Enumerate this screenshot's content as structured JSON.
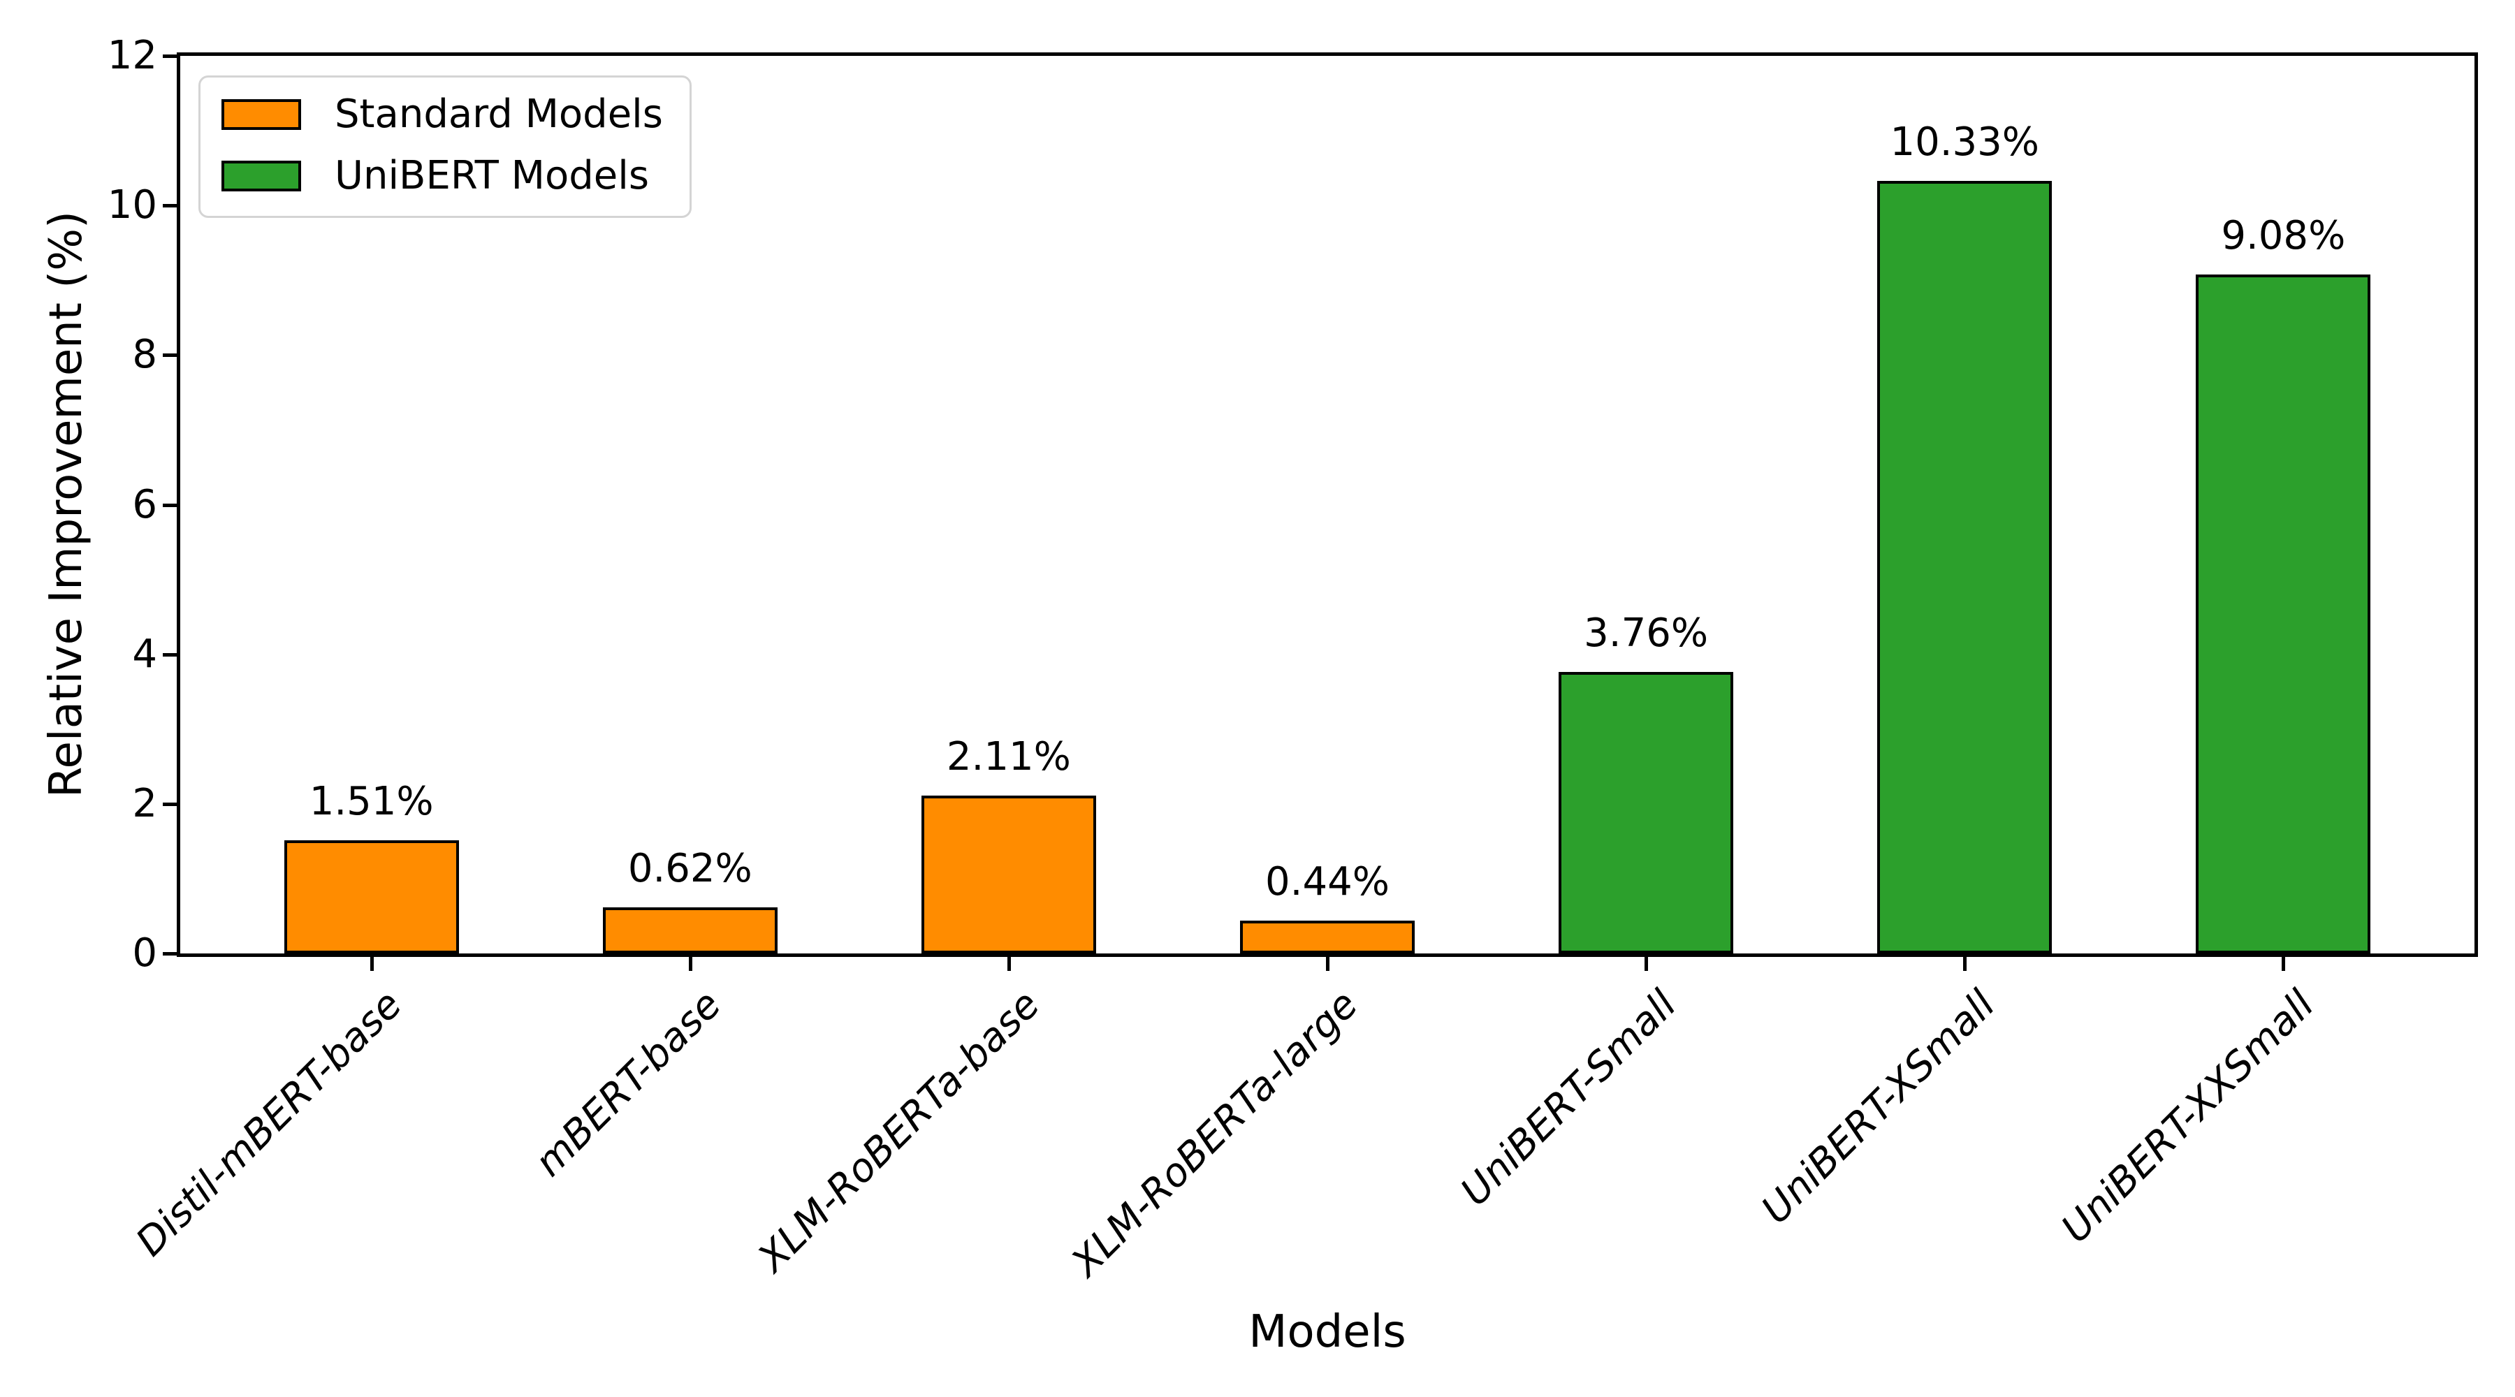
{
  "figure": {
    "background": "#ffffff"
  },
  "chart_data": {
    "type": "bar",
    "title": "",
    "xlabel": "Models",
    "ylabel": "Relative Improvement (%)",
    "categories": [
      "Distil-mBERT-base",
      "mBERT-base",
      "XLM-RoBERTa-base",
      "XLM-RoBERTa-large",
      "UniBERT-Small",
      "UniBERT-XSmall",
      "UniBERT-XXSmall"
    ],
    "values": [
      1.51,
      0.62,
      2.11,
      0.44,
      3.76,
      10.33,
      9.08
    ],
    "value_labels": [
      "1.51%",
      "0.62%",
      "2.11%",
      "0.44%",
      "3.76%",
      "10.33%",
      "9.08%"
    ],
    "series_of_bar": [
      "standard",
      "standard",
      "standard",
      "standard",
      "unibert",
      "unibert",
      "unibert"
    ],
    "bar_colors": [
      "#ff8c00",
      "#ff8c00",
      "#ff8c00",
      "#ff8c00",
      "#2ca02c",
      "#2ca02c",
      "#2ca02c"
    ],
    "bar_edge_color": "#000000",
    "ylim": [
      0,
      12
    ],
    "yticks": [
      0,
      2,
      4,
      6,
      8,
      10,
      12
    ],
    "grid": false,
    "legend": {
      "position": "upper-left",
      "entries": [
        {
          "label": "Standard Models",
          "color": "#ff8c00"
        },
        {
          "label": "UniBERT Models",
          "color": "#2ca02c"
        }
      ]
    }
  }
}
